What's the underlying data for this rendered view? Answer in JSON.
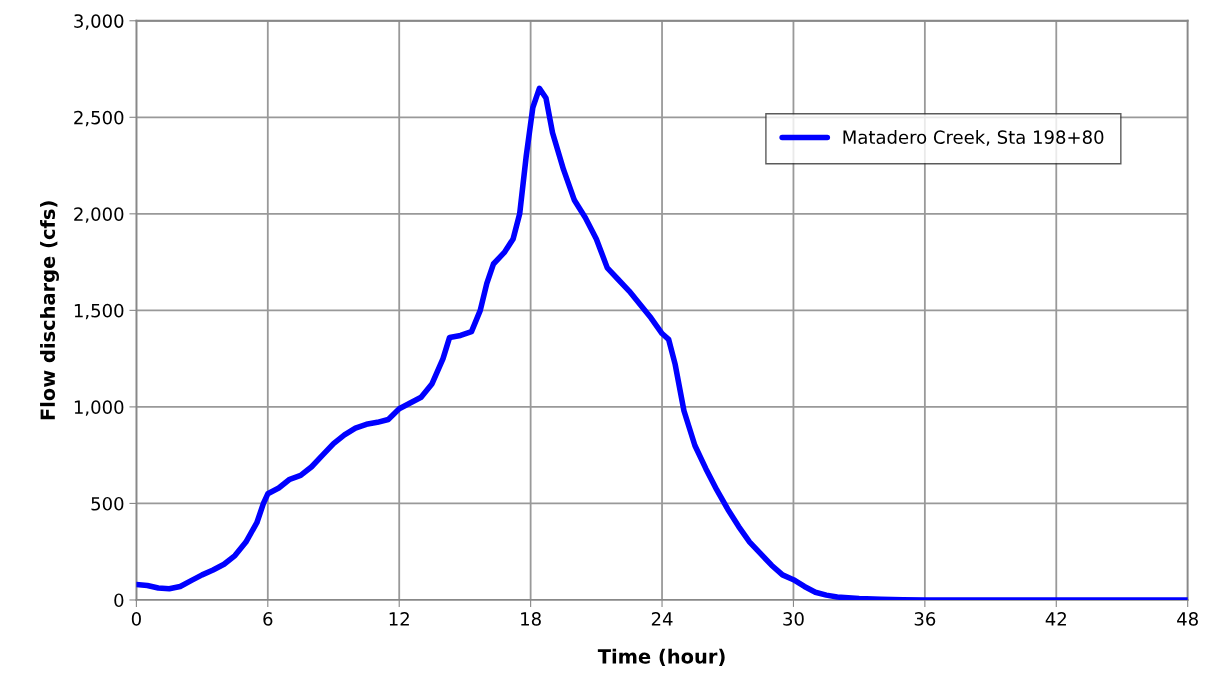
{
  "chart_data": {
    "type": "line",
    "xlabel": "Time (hour)",
    "ylabel": "Flow discharge (cfs)",
    "xlim": [
      0,
      48
    ],
    "xticks": [
      0,
      6,
      12,
      18,
      24,
      30,
      36,
      42,
      48
    ],
    "ylim": [
      0,
      3000
    ],
    "yticks": [
      {
        "value": 0,
        "label": "0"
      },
      {
        "value": 500,
        "label": "500"
      },
      {
        "value": 1000,
        "label": "1,000"
      },
      {
        "value": 1500,
        "label": "1,500"
      },
      {
        "value": 2000,
        "label": "2,000"
      },
      {
        "value": 2500,
        "label": "2,500"
      },
      {
        "value": 3000,
        "label": "3,000"
      }
    ],
    "grid": true,
    "legend": "top right",
    "marker": "none",
    "line_style": "solid",
    "series": [
      {
        "name": "Matadero Creek, Sta 198+80",
        "color": "#0000ff",
        "x": [
          0,
          0.5,
          1,
          1.5,
          2,
          2.5,
          3,
          3.5,
          4,
          4.5,
          5,
          5.5,
          5.8,
          6,
          6.5,
          7,
          7.5,
          8,
          8.5,
          9,
          9.5,
          10,
          10.5,
          11,
          11.5,
          12,
          12.5,
          13,
          13.5,
          14,
          14.3,
          14.8,
          15.3,
          15.7,
          16,
          16.3,
          16.8,
          17.2,
          17.5,
          17.8,
          18.1,
          18.4,
          18.7,
          19,
          19.5,
          20,
          20.5,
          21,
          21.5,
          22,
          22.5,
          23,
          23.5,
          24,
          24.3,
          24.6,
          25,
          25.5,
          26,
          26.5,
          27,
          27.5,
          28,
          28.5,
          29,
          29.5,
          30,
          30.5,
          31,
          31.5,
          32,
          33,
          34,
          35,
          36,
          42,
          48
        ],
        "values": [
          80,
          75,
          62,
          58,
          70,
          100,
          130,
          155,
          185,
          230,
          300,
          400,
          500,
          550,
          580,
          625,
          645,
          690,
          750,
          810,
          855,
          890,
          910,
          920,
          935,
          990,
          1020,
          1050,
          1120,
          1250,
          1360,
          1370,
          1390,
          1500,
          1640,
          1740,
          1800,
          1870,
          2000,
          2300,
          2550,
          2650,
          2600,
          2420,
          2230,
          2070,
          1980,
          1870,
          1720,
          1660,
          1600,
          1530,
          1460,
          1380,
          1350,
          1220,
          980,
          800,
          680,
          570,
          470,
          380,
          300,
          240,
          180,
          130,
          105,
          70,
          40,
          25,
          15,
          7,
          3,
          1,
          0,
          0,
          0
        ]
      }
    ]
  }
}
